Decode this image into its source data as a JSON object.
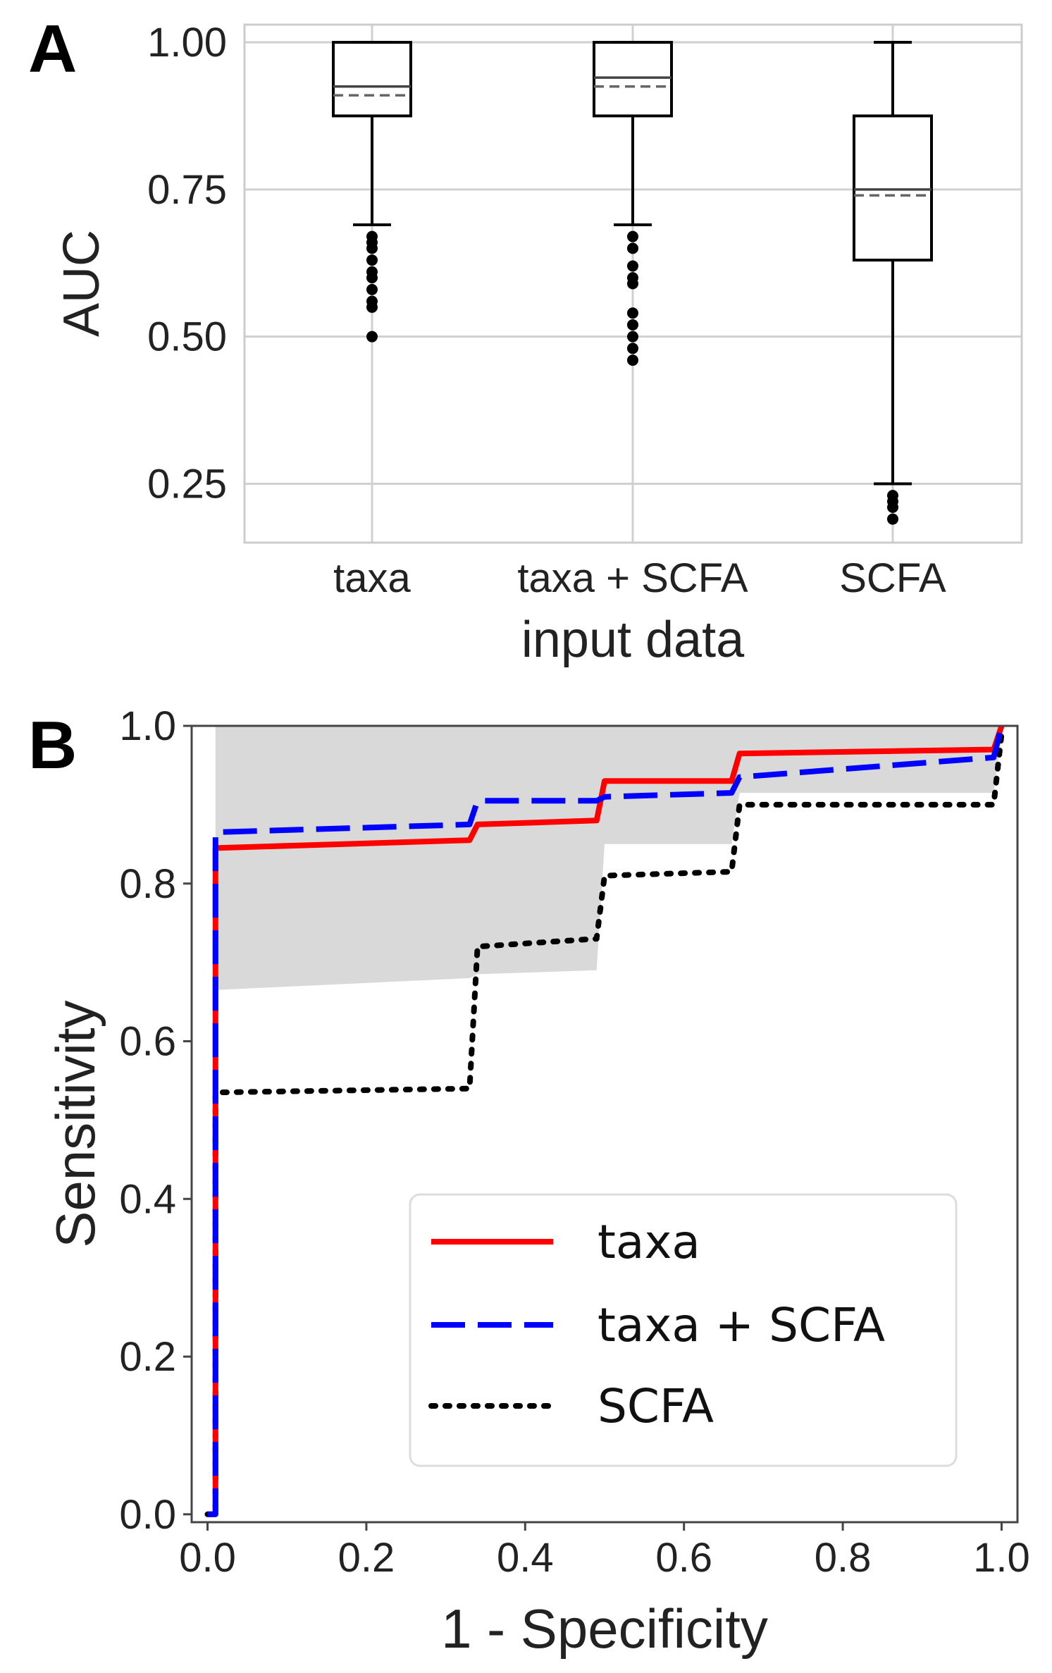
{
  "chart_data": [
    {
      "panel": "A",
      "type": "box",
      "xlabel": "input data",
      "ylabel": "AUC",
      "ylim": [
        0.15,
        1.03
      ],
      "yticks": [
        0.25,
        0.5,
        0.75,
        1.0
      ],
      "ytick_labels": [
        "0.25",
        "0.50",
        "0.75",
        "1.00"
      ],
      "grid": true,
      "categories": [
        "taxa",
        "taxa + SCFA",
        "SCFA"
      ],
      "boxes": [
        {
          "name": "taxa",
          "whisker_low": 0.69,
          "q1": 0.875,
          "median": 0.925,
          "mean": 0.91,
          "q3": 1.0,
          "whisker_high": 1.0,
          "outliers": [
            0.67,
            0.66,
            0.65,
            0.63,
            0.61,
            0.6,
            0.58,
            0.56,
            0.55,
            0.5
          ]
        },
        {
          "name": "taxa + SCFA",
          "whisker_low": 0.69,
          "q1": 0.875,
          "median": 0.94,
          "mean": 0.925,
          "q3": 1.0,
          "whisker_high": 1.0,
          "outliers": [
            0.67,
            0.65,
            0.62,
            0.6,
            0.59,
            0.54,
            0.52,
            0.5,
            0.48,
            0.46
          ]
        },
        {
          "name": "SCFA",
          "whisker_low": 0.25,
          "q1": 0.63,
          "median": 0.75,
          "mean": 0.74,
          "q3": 0.875,
          "whisker_high": 1.0,
          "outliers": [
            0.23,
            0.22,
            0.21,
            0.19
          ]
        }
      ]
    },
    {
      "panel": "B",
      "type": "line",
      "xlabel": "1 - Specificity",
      "ylabel": "Sensitivity",
      "xlim": [
        -0.02,
        1.02
      ],
      "ylim": [
        -0.01,
        1.0
      ],
      "xticks": [
        0.0,
        0.2,
        0.4,
        0.6,
        0.8,
        1.0
      ],
      "xtick_labels": [
        "0.0",
        "0.2",
        "0.4",
        "0.6",
        "0.8",
        "1.0"
      ],
      "yticks": [
        0.0,
        0.2,
        0.4,
        0.6,
        0.8,
        1.0
      ],
      "ytick_labels": [
        "0.0",
        "0.2",
        "0.4",
        "0.6",
        "0.8",
        "1.0"
      ],
      "legend_position": "lower-right",
      "series": [
        {
          "name": "taxa",
          "color": "#ff0000",
          "style": "solid",
          "x": [
            0,
            0.01,
            0.01,
            0.33,
            0.34,
            0.49,
            0.5,
            0.66,
            0.67,
            0.99,
            1.0
          ],
          "y": [
            0,
            0,
            0.845,
            0.855,
            0.875,
            0.88,
            0.93,
            0.93,
            0.965,
            0.97,
            1.0
          ]
        },
        {
          "name": "taxa + SCFA",
          "color": "#0000ff",
          "style": "dashed",
          "x": [
            0,
            0.01,
            0.01,
            0.33,
            0.34,
            0.49,
            0.5,
            0.66,
            0.67,
            0.99,
            1.0
          ],
          "y": [
            0,
            0,
            0.865,
            0.875,
            0.905,
            0.905,
            0.91,
            0.915,
            0.935,
            0.96,
            1.0
          ]
        },
        {
          "name": "SCFA",
          "color": "#000000",
          "style": "dotted",
          "x": [
            0,
            0.01,
            0.01,
            0.33,
            0.34,
            0.49,
            0.5,
            0.66,
            0.67,
            0.99,
            1.0
          ],
          "y": [
            0,
            0,
            0.535,
            0.54,
            0.72,
            0.73,
            0.81,
            0.815,
            0.9,
            0.9,
            0.99
          ]
        }
      ],
      "band": {
        "color": "#d9d9d9",
        "x": [
          0.01,
          0.33,
          0.34,
          0.49,
          0.5,
          0.66,
          0.67,
          0.99,
          1.0
        ],
        "upper": [
          1.0,
          1.0,
          1.0,
          1.0,
          1.0,
          1.0,
          1.0,
          1.0,
          1.0
        ],
        "lower": [
          0.665,
          0.68,
          0.685,
          0.69,
          0.85,
          0.85,
          0.915,
          0.915,
          0.99
        ]
      }
    }
  ]
}
